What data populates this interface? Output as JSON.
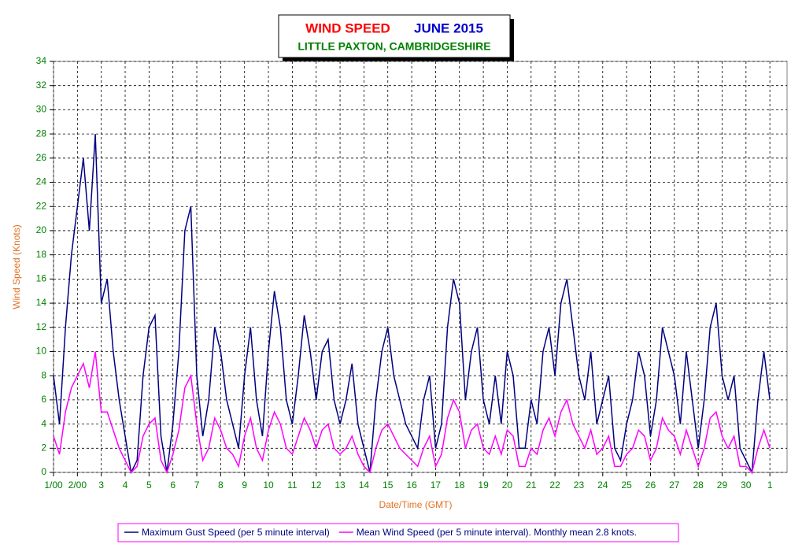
{
  "chart_data": {
    "type": "line",
    "title": "WIND SPEED",
    "title_month": "JUNE 2015",
    "subtitle": "LITTLE PAXTON, CAMBRIDGESHIRE",
    "ylabel": "Wind Speed (Knots)",
    "xlabel": "Date/Time (GMT)",
    "grid": true,
    "xlim": [
      1,
      31.72
    ],
    "ylim": [
      0,
      34
    ],
    "yticks": [
      0,
      2,
      4,
      6,
      8,
      10,
      12,
      14,
      16,
      18,
      20,
      22,
      24,
      26,
      28,
      30,
      32,
      34
    ],
    "xticks": [
      {
        "value": 1,
        "label": "1/00"
      },
      {
        "value": 2,
        "label": "2/00"
      },
      3,
      4,
      5,
      6,
      7,
      8,
      9,
      10,
      11,
      12,
      13,
      14,
      15,
      16,
      17,
      18,
      19,
      20,
      21,
      22,
      23,
      24,
      25,
      26,
      27,
      28,
      29,
      30,
      {
        "value": 31,
        "label": "1"
      }
    ],
    "x": [
      1,
      1.25,
      1.5,
      1.75,
      2,
      2.25,
      2.5,
      2.75,
      3,
      3.25,
      3.5,
      3.75,
      4,
      4.25,
      4.5,
      4.75,
      5,
      5.25,
      5.5,
      5.75,
      6,
      6.25,
      6.5,
      6.75,
      7,
      7.25,
      7.5,
      7.75,
      8,
      8.25,
      8.5,
      8.75,
      9,
      9.25,
      9.5,
      9.75,
      10,
      10.25,
      10.5,
      10.75,
      11,
      11.25,
      11.5,
      11.75,
      12,
      12.25,
      12.5,
      12.75,
      13,
      13.25,
      13.5,
      13.75,
      14,
      14.25,
      14.5,
      14.75,
      15,
      15.25,
      15.5,
      15.75,
      16,
      16.25,
      16.5,
      16.75,
      17,
      17.25,
      17.5,
      17.75,
      18,
      18.25,
      18.5,
      18.75,
      19,
      19.25,
      19.5,
      19.75,
      20,
      20.25,
      20.5,
      20.75,
      21,
      21.25,
      21.5,
      21.75,
      22,
      22.25,
      22.5,
      22.75,
      23,
      23.25,
      23.5,
      23.75,
      24,
      24.25,
      24.5,
      24.75,
      25,
      25.25,
      25.5,
      25.75,
      26,
      26.25,
      26.5,
      26.75,
      27,
      27.25,
      27.5,
      27.75,
      28,
      28.25,
      28.5,
      28.75,
      29,
      29.25,
      29.5,
      29.75,
      30,
      30.25,
      30.5,
      30.75,
      31
    ],
    "series": [
      {
        "name": "Maximum Gust Speed (per 5 minute interval)",
        "color": "#000080",
        "values": [
          8,
          4,
          12,
          18,
          22,
          26,
          20,
          28,
          14,
          16,
          10,
          6,
          3,
          0,
          1,
          8,
          12,
          13,
          3,
          0,
          4,
          10,
          20,
          22,
          8,
          3,
          6,
          12,
          10,
          6,
          4,
          2,
          8,
          12,
          6,
          3,
          10,
          15,
          12,
          6,
          4,
          8,
          13,
          10,
          6,
          10,
          11,
          6,
          4,
          6,
          9,
          4,
          2,
          0,
          6,
          10,
          12,
          8,
          6,
          4,
          3,
          2,
          6,
          8,
          2,
          4,
          12,
          16,
          14,
          6,
          10,
          12,
          6,
          4,
          8,
          4,
          10,
          8,
          2,
          2,
          6,
          4,
          10,
          12,
          8,
          14,
          16,
          12,
          8,
          6,
          10,
          4,
          6,
          8,
          2,
          1,
          4,
          6,
          10,
          8,
          3,
          6,
          12,
          10,
          8,
          4,
          10,
          6,
          2,
          6,
          12,
          14,
          8,
          6,
          8,
          2,
          1,
          0,
          6,
          10,
          6
        ]
      },
      {
        "name": "Mean Wind Speed (per 5 minute interval). Monthly mean 2.8 knots.",
        "color": "#ff00ff",
        "values": [
          3,
          1.5,
          5,
          7,
          8,
          9,
          7,
          10,
          5,
          5,
          3.5,
          2,
          1,
          0,
          0.5,
          3,
          4,
          4.5,
          1,
          0,
          1.5,
          3.5,
          7,
          8,
          4,
          1,
          2,
          4.5,
          3.5,
          2,
          1.5,
          0.5,
          3,
          4.5,
          2,
          1,
          3.5,
          5,
          4,
          2,
          1.5,
          3,
          4.5,
          3.5,
          2,
          3.5,
          4,
          2,
          1.5,
          2,
          3,
          1.5,
          0.5,
          0,
          2,
          3.5,
          4,
          3,
          2,
          1.5,
          1,
          0.5,
          2,
          3,
          0.5,
          1.5,
          4.5,
          6,
          5,
          2,
          3.5,
          4,
          2,
          1.5,
          3,
          1.5,
          3.5,
          3,
          0.5,
          0.5,
          2,
          1.5,
          3.5,
          4.5,
          3,
          5,
          6,
          4,
          3,
          2,
          3.5,
          1.5,
          2,
          3,
          0.5,
          0.5,
          1.5,
          2,
          3.5,
          3,
          1,
          2,
          4.5,
          3.5,
          3,
          1.5,
          3.5,
          2,
          0.5,
          2,
          4.5,
          5,
          3,
          2,
          3,
          0.5,
          0.5,
          0,
          2,
          3.5,
          2
        ]
      }
    ]
  }
}
